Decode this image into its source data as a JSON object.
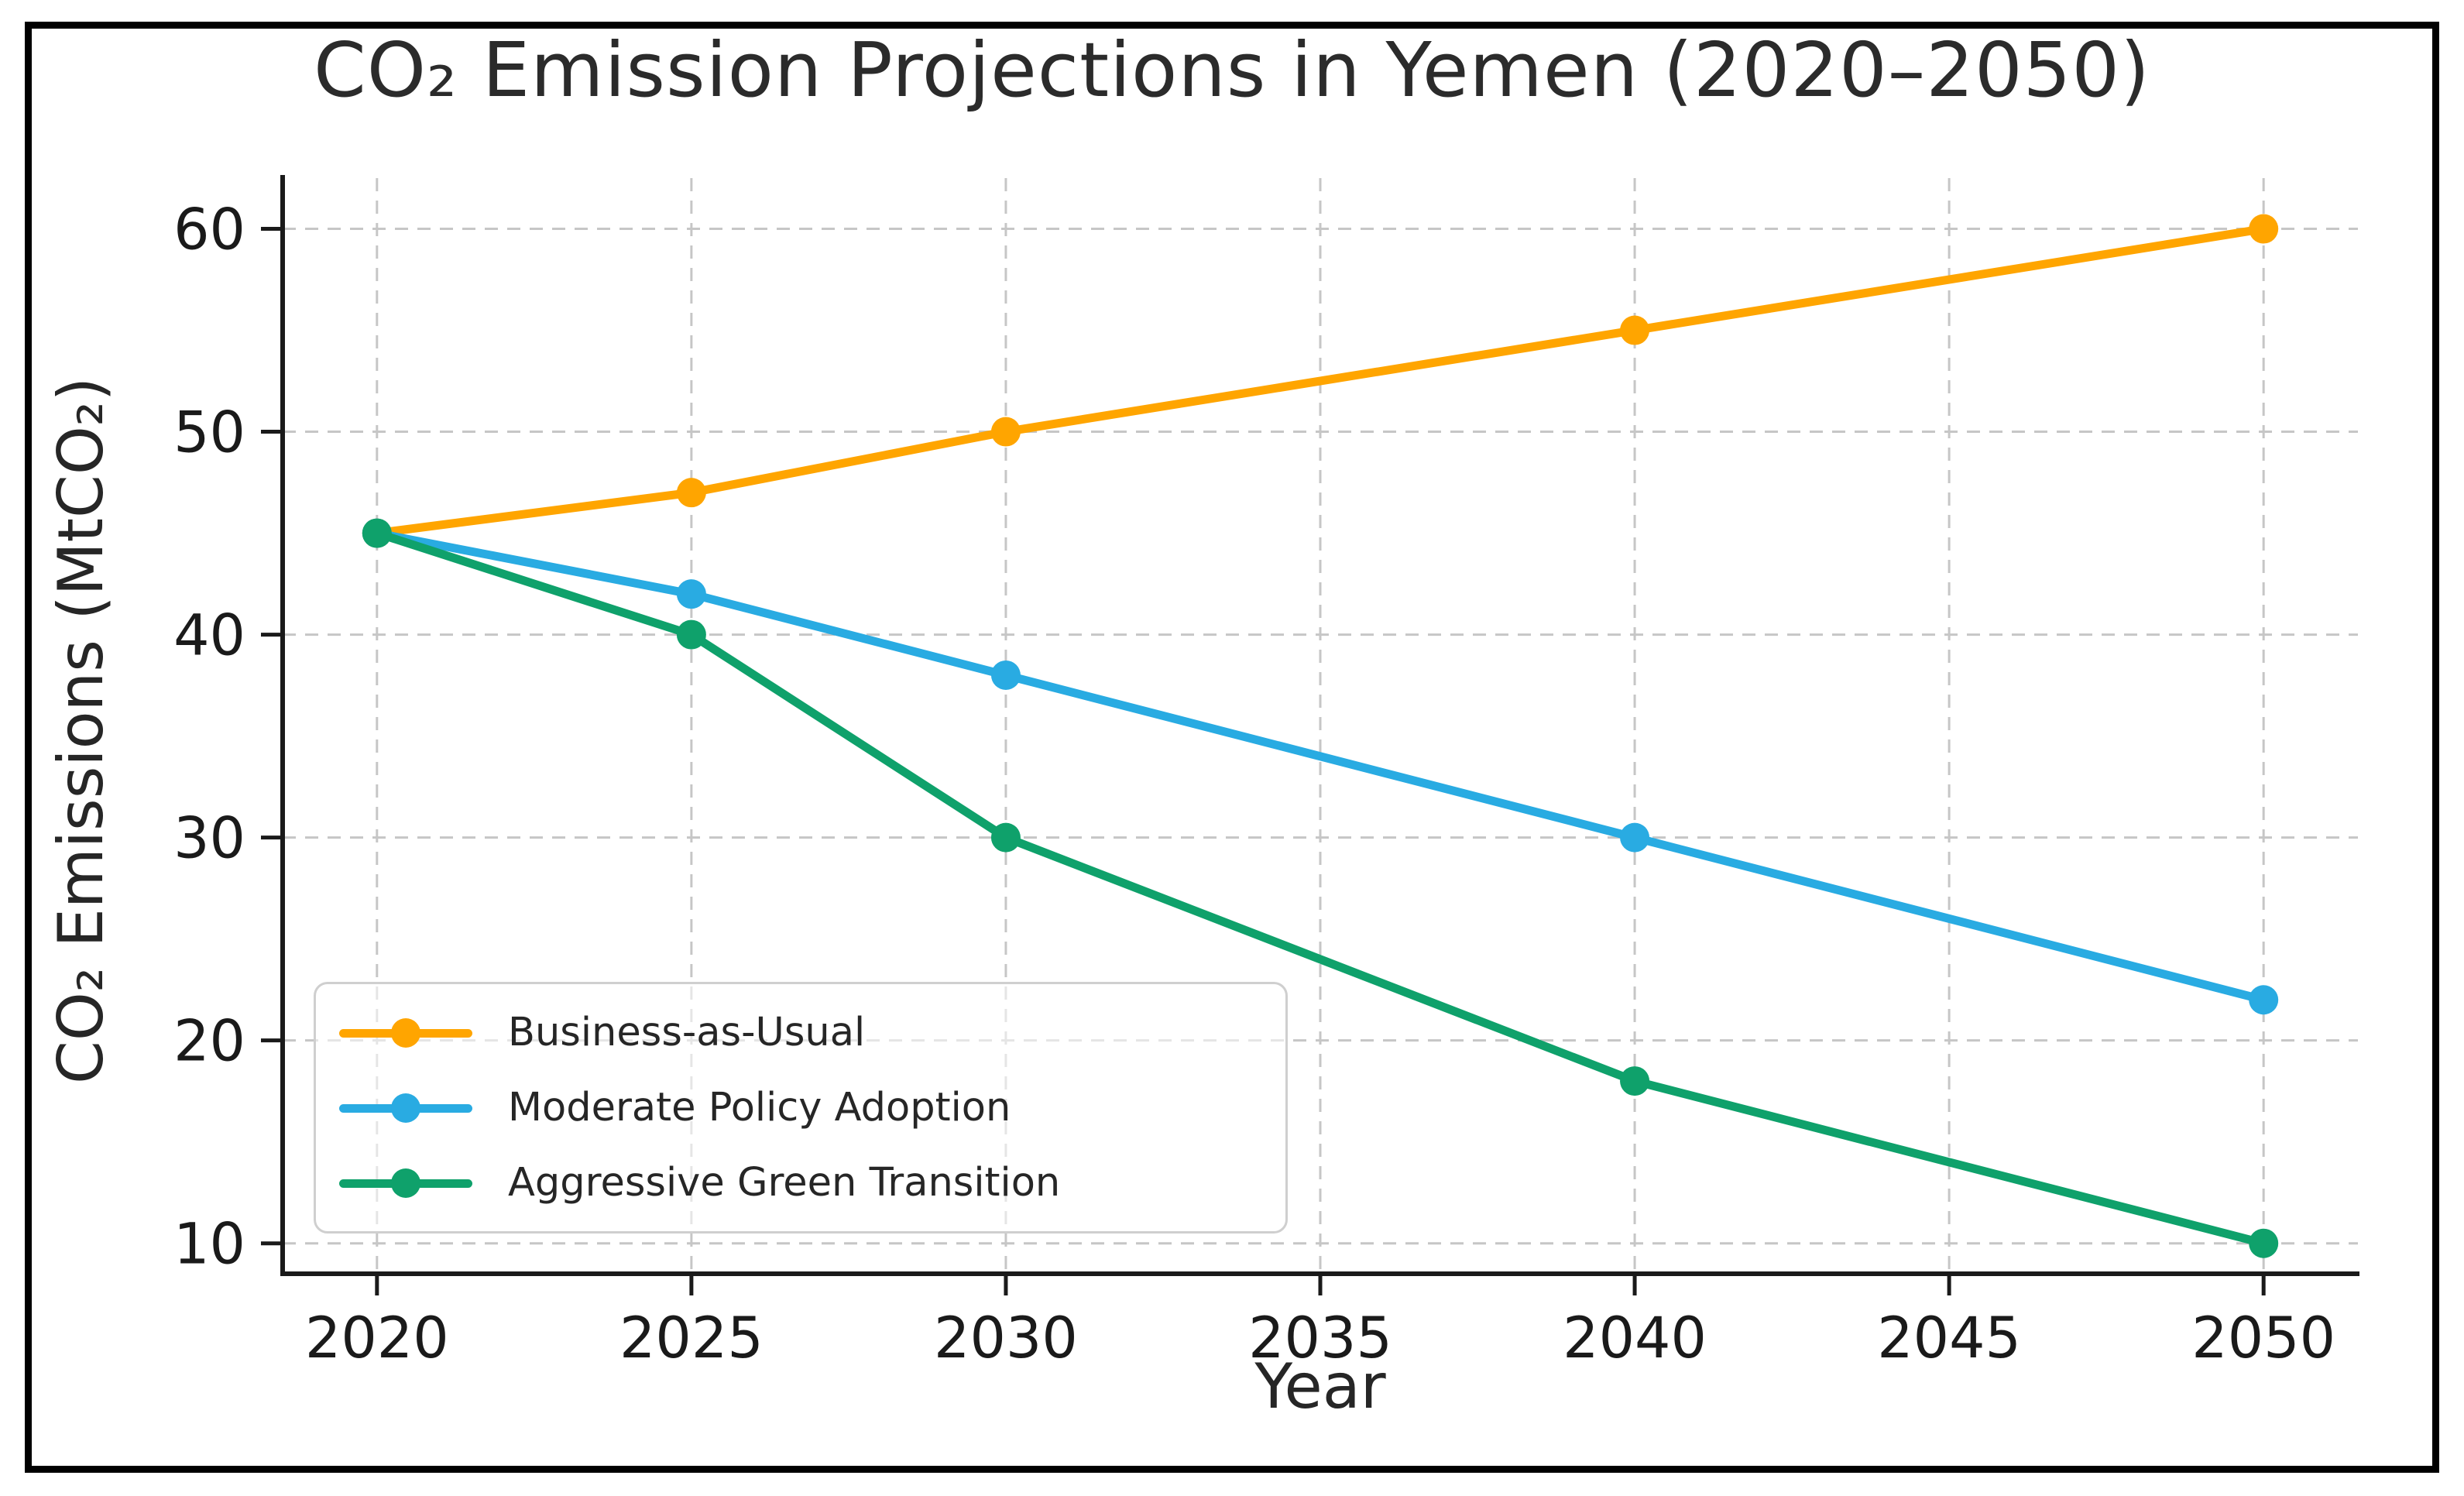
{
  "chart_data": {
    "type": "line",
    "title": "CO₂ Emission Projections in Yemen (2020–2050)",
    "xlabel": "Year",
    "ylabel": "CO₂ Emissions (MtCO₂)",
    "x": [
      2020,
      2025,
      2030,
      2040,
      2050
    ],
    "series": [
      {
        "name": "Business-as-Usual",
        "color": "#FFA500",
        "values": [
          45,
          47,
          50,
          55,
          60
        ]
      },
      {
        "name": "Moderate Policy Adoption",
        "color": "#29ABE2",
        "values": [
          45,
          42,
          38,
          30,
          22
        ]
      },
      {
        "name": "Aggressive Green Transition",
        "color": "#0FA16B",
        "values": [
          45,
          40,
          30,
          18,
          10
        ]
      }
    ],
    "xticks": [
      2020,
      2025,
      2030,
      2035,
      2040,
      2045,
      2050
    ],
    "yticks": [
      10,
      20,
      30,
      40,
      50,
      60
    ],
    "xlim": [
      2018.5,
      2051.5
    ],
    "ylim": [
      8.5,
      62.5
    ],
    "grid": "dashed-both",
    "legend_position": "lower-left",
    "style": {
      "grid_color": "#c6c6c6",
      "axis_color": "#1a1a1a",
      "text_color": "#1a1a1a",
      "legend_border_color": "#cfcfcf",
      "figure_border_color": "#000000",
      "background": "#ffffff"
    }
  }
}
